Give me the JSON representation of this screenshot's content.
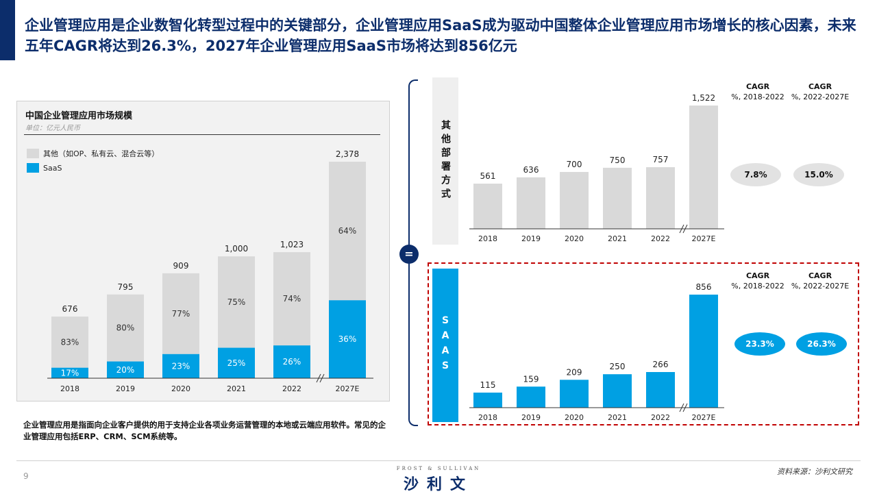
{
  "title": "企业管理应用是企业数智化转型过程中的关键部分，企业管理应用SaaS成为驱动中国整体企业管理应用市场增长的核心因素，未来五年CAGR将达到26.3%，2027年企业管理应用SaaS市场将达到856亿元",
  "left_panel": {
    "title": "中国企业管理应用市场规模",
    "unit": "单位：亿元人民币",
    "legend": [
      {
        "label": "其他（如OP、私有云、混合云等）",
        "color": "#d9d9d9"
      },
      {
        "label": "SaaS",
        "color": "#00a0e3"
      }
    ]
  },
  "chart_data": [
    {
      "type": "bar",
      "id": "total",
      "stacked": true,
      "categories": [
        "2018",
        "2019",
        "2020",
        "2021",
        "2022",
        "2027E"
      ],
      "totals": [
        "676",
        "795",
        "909",
        "1,000",
        "1,023",
        "2,378"
      ],
      "totals_values": [
        676,
        795,
        909,
        1000,
        1023,
        2378
      ],
      "series": [
        {
          "name": "SaaS",
          "share_labels": [
            "17%",
            "20%",
            "23%",
            "25%",
            "26%",
            "36%"
          ],
          "share": [
            0.17,
            0.2,
            0.23,
            0.25,
            0.26,
            0.36
          ],
          "color": "#00a0e3"
        },
        {
          "name": "其他（如OP、私有云、混合云等）",
          "share_labels": [
            "83%",
            "80%",
            "77%",
            "75%",
            "74%",
            "64%"
          ],
          "share": [
            0.83,
            0.8,
            0.77,
            0.75,
            0.74,
            0.64
          ],
          "color": "#d9d9d9"
        }
      ],
      "axis_break_before": "2027E"
    },
    {
      "type": "bar",
      "id": "other",
      "categories": [
        "2018",
        "2019",
        "2020",
        "2021",
        "2022",
        "2027E"
      ],
      "values": [
        561,
        636,
        700,
        750,
        757,
        1522
      ],
      "value_labels": [
        "561",
        "636",
        "700",
        "750",
        "757",
        "1,522"
      ],
      "color": "#d9d9d9",
      "axis_break_before": "2027E"
    },
    {
      "type": "bar",
      "id": "saas",
      "categories": [
        "2018",
        "2019",
        "2020",
        "2021",
        "2022",
        "2027E"
      ],
      "values": [
        115,
        159,
        209,
        250,
        266,
        856
      ],
      "value_labels": [
        "115",
        "159",
        "209",
        "250",
        "266",
        "856"
      ],
      "color": "#00a0e3",
      "axis_break_before": "2027E"
    }
  ],
  "right_panel": {
    "other_label": "其他部署方式",
    "saas_label": "SAAS",
    "equals": "=",
    "cagr_header": {
      "title": "CAGR",
      "range1": "%, 2018-2022",
      "range2": "%, 2022-2027E"
    },
    "other_cagr": [
      "7.8%",
      "15.0%"
    ],
    "saas_cagr": [
      "23.3%",
      "26.3%"
    ]
  },
  "note": "企业管理应用是指面向企业客户提供的用于支持企业各项业务运营管理的本地或云端应用软件。常见的企业管理应用包括ERP、CRM、SCM系统等。",
  "footer": {
    "page": "9",
    "logo_top": "FROST & SULLIVAN",
    "logo_main": "沙利文",
    "source": "资料来源：沙利文研究"
  }
}
